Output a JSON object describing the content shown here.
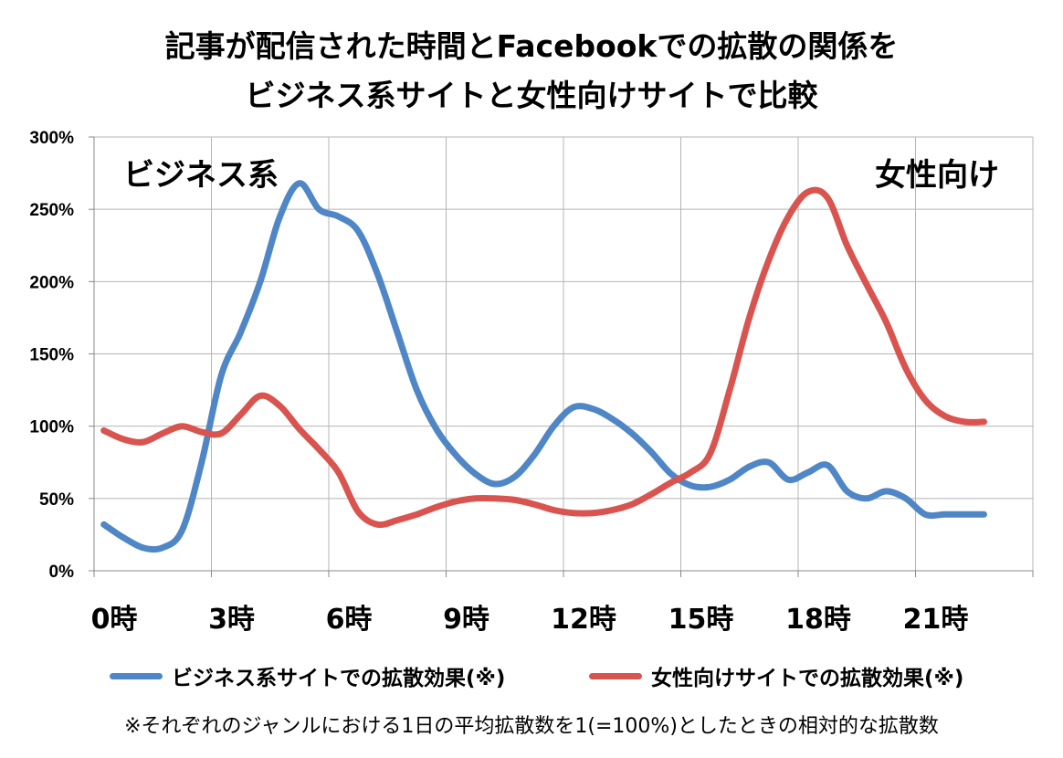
{
  "chart_data": {
    "type": "line",
    "title_lines": [
      "記事が配信された時間とFacebookでの拡散の関係を",
      "ビジネス系サイトと女性向けサイトで比較"
    ],
    "x_tick_labels": [
      "0時",
      "3時",
      "6時",
      "9時",
      "12時",
      "15時",
      "18時",
      "21時"
    ],
    "x_tick_values": [
      0,
      3,
      6,
      9,
      12,
      15,
      18,
      21
    ],
    "y_tick_labels": [
      "0%",
      "50%",
      "100%",
      "150%",
      "200%",
      "250%",
      "300%"
    ],
    "y_tick_values": [
      0,
      50,
      100,
      150,
      200,
      250,
      300
    ],
    "ylim": [
      0,
      300
    ],
    "y_unit": "%",
    "grid": "vertical lines at every 3 hours; horizontal lines at every 50%",
    "legend_position": "bottom",
    "annotations": [
      "ビジネス系",
      "女性向け"
    ],
    "series": [
      {
        "name": "ビジネス系サイトでの拡散効果(※)",
        "color": "#4F86C6",
        "x": [
          0.25,
          0.75,
          1.25,
          1.75,
          2.25,
          2.75,
          3.25,
          3.75,
          4.25,
          4.75,
          5.25,
          5.75,
          6.25,
          6.75,
          7.25,
          7.75,
          8.25,
          8.75,
          9.25,
          9.75,
          10.25,
          10.75,
          11.25,
          11.75,
          12.25,
          12.75,
          13.25,
          13.75,
          14.25,
          14.75,
          15.25,
          15.75,
          16.25,
          16.75,
          17.25,
          17.75,
          18.25,
          18.75,
          19.25,
          19.75,
          20.25,
          20.75,
          21.25,
          21.75,
          22.25,
          22.75
        ],
        "values": [
          32,
          23,
          16,
          16,
          28,
          75,
          135,
          165,
          200,
          245,
          268,
          250,
          245,
          235,
          205,
          165,
          125,
          98,
          80,
          67,
          60,
          65,
          80,
          100,
          113,
          112,
          105,
          95,
          82,
          67,
          59,
          58,
          63,
          72,
          75,
          63,
          68,
          73,
          55,
          50,
          55,
          50,
          39,
          39,
          39,
          39
        ]
      },
      {
        "name": "女性向けサイトでの拡散効果(※)",
        "color": "#D9534F",
        "x": [
          0.25,
          0.75,
          1.25,
          1.75,
          2.25,
          2.75,
          3.25,
          3.75,
          4.25,
          4.75,
          5.25,
          5.75,
          6.25,
          6.75,
          7.25,
          7.75,
          8.25,
          8.75,
          9.25,
          9.75,
          10.25,
          10.75,
          11.25,
          11.75,
          12.25,
          12.75,
          13.25,
          13.75,
          14.25,
          14.75,
          15.25,
          15.75,
          16.25,
          16.75,
          17.25,
          17.75,
          18.25,
          18.75,
          19.25,
          19.75,
          20.25,
          20.75,
          21.25,
          21.75,
          22.25,
          22.75
        ],
        "values": [
          97,
          91,
          89,
          95,
          100,
          96,
          95,
          108,
          121,
          114,
          98,
          84,
          68,
          41,
          32,
          35,
          39,
          44,
          48,
          50,
          50,
          49,
          46,
          42,
          40,
          40,
          42,
          46,
          53,
          61,
          68,
          81,
          125,
          175,
          215,
          245,
          262,
          258,
          225,
          198,
          172,
          140,
          118,
          107,
          103,
          103
        ]
      }
    ]
  },
  "footnote": "※それぞれのジャンルにおける1日の平均拡散数を1(=100%)としたときの相対的な拡散数"
}
